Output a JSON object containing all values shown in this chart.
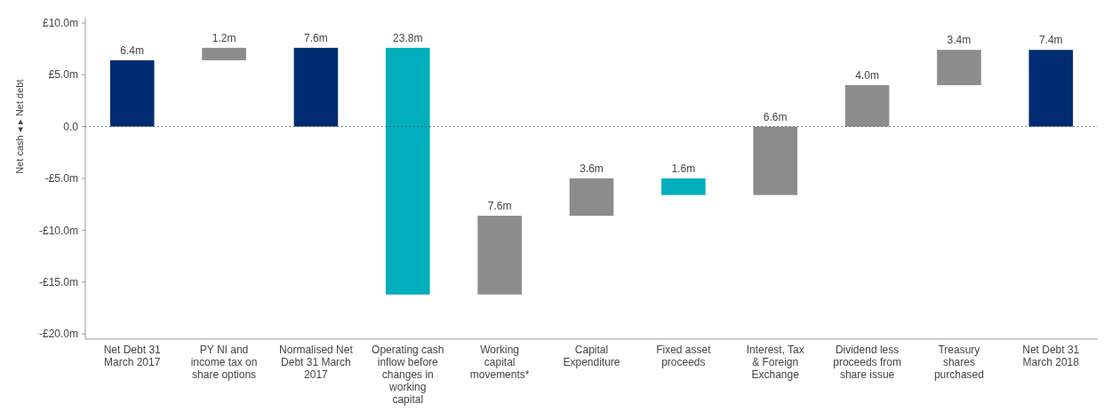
{
  "chart_data": {
    "type": "bar",
    "ylabel": "Net cash ◂ ▸ Net debt",
    "categories": [
      "Net Debt 31 March 2017",
      "PY NI and income tax on share options",
      "Normalised Net Debt 31 March 2017",
      "Operating cash inflow before changes in working capital",
      "Working capital movements*",
      "Capital Expenditure",
      "Fixed asset proceeds",
      "Interest, Tax & Foreign Exchange",
      "Dividend less proceeds from share issue",
      "Treasury shares purchased",
      "Net Debt 31 March 2018"
    ],
    "values": [
      6.4,
      1.2,
      7.6,
      23.8,
      7.6,
      3.6,
      1.6,
      6.6,
      4.0,
      3.4,
      7.4
    ],
    "base": [
      0,
      6.4,
      0,
      -16.2,
      -16.2,
      -8.6,
      -6.6,
      -6.6,
      0,
      4.0,
      0
    ],
    "colors": [
      "#002d72",
      "#8c8c8c",
      "#002d72",
      "#00aebc",
      "#8c8c8c",
      "#8c8c8c",
      "#00aebc",
      "#8c8c8c",
      "#8c8c8c",
      "#8c8c8c",
      "#002d72"
    ],
    "value_labels": [
      "6.4m",
      "1.2m",
      "7.6m",
      "23.8m",
      "7.6m",
      "3.6m",
      "1.6m",
      "6.6m",
      "4.0m",
      "3.4m",
      "7.4m"
    ],
    "ylim": [
      -20.5,
      10.5
    ],
    "yticks": [
      {
        "value": 10,
        "label": "£10.0m"
      },
      {
        "value": 5,
        "label": "£5.0m"
      },
      {
        "value": 0,
        "label": "0.0"
      },
      {
        "value": -5,
        "label": "-£5.0m"
      },
      {
        "value": -10,
        "label": "-£10.0m"
      },
      {
        "value": -15,
        "label": "-£15.0m"
      },
      {
        "value": -20,
        "label": "-£20.0m"
      }
    ],
    "ref_lines": [
      {
        "axis": "y",
        "value": 0,
        "label": null,
        "line_style": "dotted",
        "color": "#555555"
      }
    ],
    "grid": false
  }
}
